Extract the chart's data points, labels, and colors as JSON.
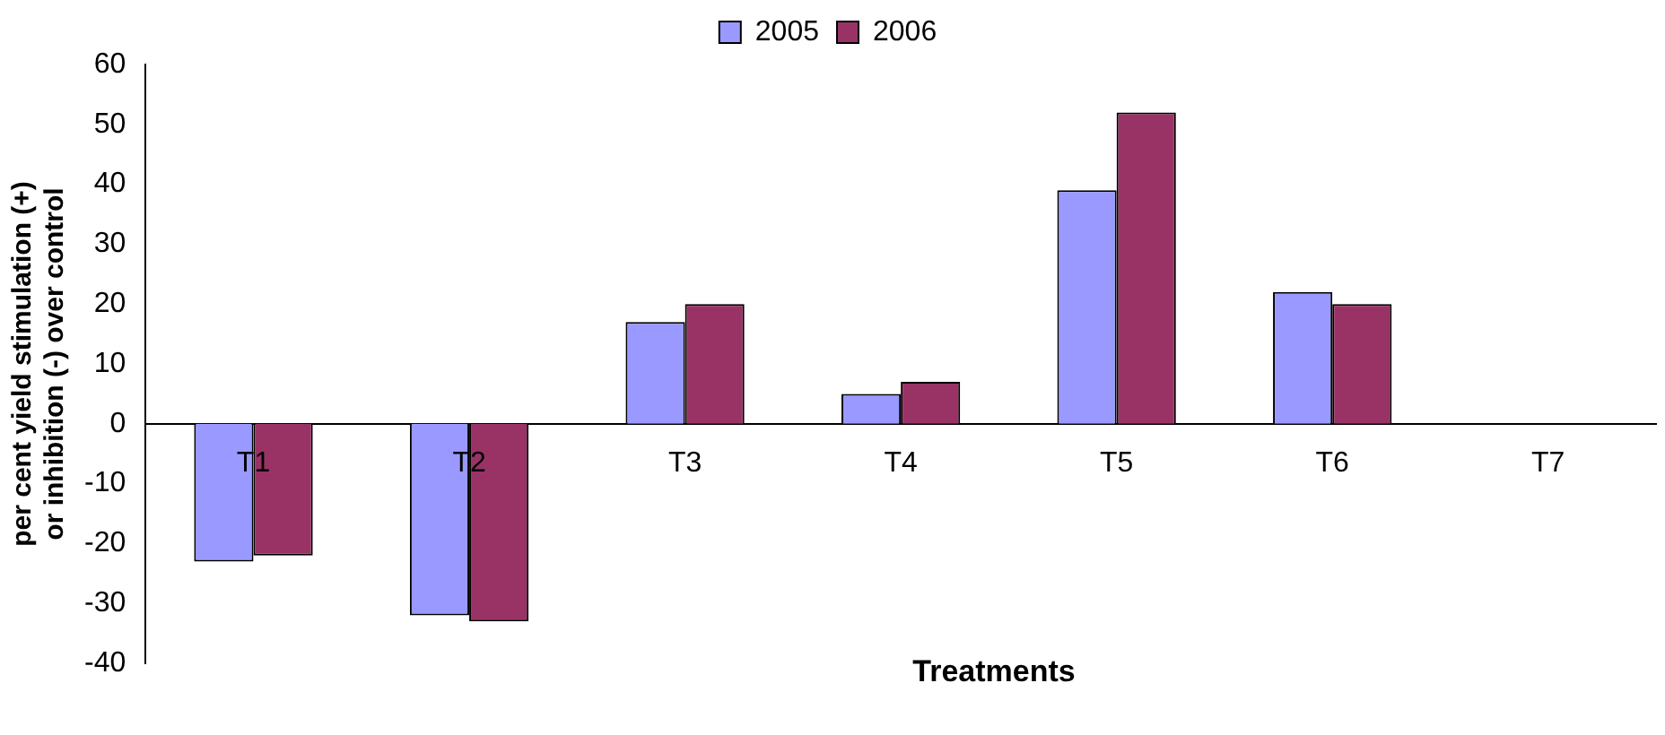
{
  "chart_data": {
    "type": "bar",
    "xlabel": "Treatments",
    "ylabel": "per cent yield stimulation (+) or inhibition (-) over control",
    "categories": [
      "T1",
      "T2",
      "T3",
      "T4",
      "T5",
      "T6",
      "T7"
    ],
    "series": [
      {
        "name": "2005",
        "color": "#9999ff",
        "values": [
          -23,
          -32,
          17,
          5,
          39,
          22,
          null
        ]
      },
      {
        "name": "2006",
        "color": "#993366",
        "values": [
          -22,
          -33,
          20,
          7,
          52,
          20,
          null
        ]
      }
    ],
    "ylim": [
      -40,
      60
    ],
    "yticks": [
      -40,
      -30,
      -20,
      -10,
      0,
      10,
      20,
      30,
      40,
      50,
      60
    ],
    "grid": false,
    "legend": "top"
  }
}
